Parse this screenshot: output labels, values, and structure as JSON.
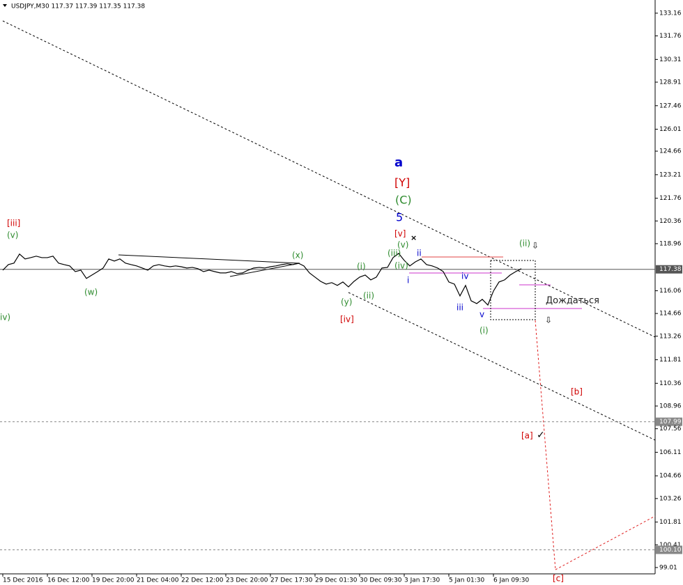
{
  "chart_data": {
    "type": "line",
    "title": "USDJPY,M30 117.37 117.39 117.35 117.38",
    "categories": [
      "15 Dec 2016",
      null,
      null,
      null,
      null,
      null,
      null,
      null,
      "16 Dec 12:00",
      null,
      null,
      null,
      null,
      null,
      null,
      null,
      "19 Dec 20:00",
      null,
      null,
      null,
      null,
      null,
      null,
      null,
      "21 Dec 04:00",
      null,
      null,
      null,
      null,
      null,
      null,
      null,
      "22 Dec 12:00",
      null,
      null,
      null,
      null,
      null,
      null,
      null,
      "23 Dec 20:00",
      null,
      null,
      null,
      null,
      null,
      null,
      null,
      "27 Dec 17:30",
      null,
      null,
      null,
      null,
      null,
      null,
      null,
      "29 Dec 01:30",
      null,
      null,
      null,
      null,
      null,
      null,
      null,
      "30 Dec 09:30",
      null,
      null,
      null,
      null,
      null,
      null,
      null,
      "3 Jan 17:30",
      null,
      null,
      null,
      null,
      null,
      null,
      null,
      "5 Jan 01:30",
      null,
      null,
      null,
      null,
      null,
      null,
      null,
      "6 Jan 09:30",
      null,
      null,
      null,
      null,
      null
    ],
    "series": [
      {
        "color": "#000000",
        "values": [
          117.33,
          117.67,
          117.76,
          118.32,
          118.02,
          118.1,
          118.19,
          118.1,
          118.1,
          118.19,
          117.76,
          117.67,
          117.59,
          117.24,
          117.33,
          116.82,
          117.03,
          117.24,
          117.46,
          118.02,
          117.89,
          118.02,
          117.76,
          117.67,
          117.59,
          117.46,
          117.33,
          117.59,
          117.67,
          117.59,
          117.54,
          117.59,
          117.54,
          117.46,
          117.5,
          117.42,
          117.24,
          117.33,
          117.24,
          117.16,
          117.16,
          117.24,
          117.12,
          117.16,
          117.33,
          117.46,
          117.5,
          117.46,
          117.54,
          117.59,
          117.67,
          117.72,
          117.67,
          117.76,
          117.59,
          117.16,
          116.9,
          116.64,
          116.47,
          116.56,
          116.39,
          116.6,
          116.3,
          116.64,
          116.9,
          117.03,
          116.73,
          116.9,
          117.46,
          117.5,
          118.1,
          118.36,
          117.93,
          117.59,
          117.84,
          118.02,
          117.67,
          117.59,
          117.46,
          117.24,
          116.6,
          116.47,
          115.74,
          116.39,
          115.44,
          115.27,
          115.53,
          115.18,
          116.04,
          116.6,
          116.73,
          117.03,
          117.24,
          117.42
        ]
      }
    ],
    "ylim": [
      98.62,
      133.8
    ],
    "yticks": [
      133.16,
      131.76,
      130.31,
      128.91,
      127.46,
      126.01,
      124.66,
      123.21,
      121.76,
      120.36,
      118.96,
      116.06,
      114.66,
      113.26,
      111.81,
      110.36,
      108.96,
      107.56,
      106.11,
      104.66,
      103.26,
      101.81,
      100.41,
      99.01
    ],
    "levels": [
      {
        "value": 117.38,
        "label": "117.38",
        "style": "solid",
        "color": "#555555"
      },
      {
        "value": 107.99,
        "label": "107.99",
        "style": "dashed",
        "color": "#888888"
      },
      {
        "value": 100.1,
        "label": "100.10",
        "style": "dashed",
        "color": "#888888"
      }
    ],
    "annotations": [
      {
        "text": "[iii]",
        "color": "#d00000"
      },
      {
        "text": "(v)",
        "color": "#2e8b2e"
      },
      {
        "text": "iv)",
        "color": "#2e8b2e"
      },
      {
        "text": "(w)",
        "color": "#2e8b2e"
      },
      {
        "text": "(x)",
        "color": "#2e8b2e"
      },
      {
        "text": "(y)",
        "color": "#2e8b2e"
      },
      {
        "text": "[iv]",
        "color": "#d00000"
      },
      {
        "text": "(i)",
        "color": "#2e8b2e"
      },
      {
        "text": "(ii)",
        "color": "#2e8b2e"
      },
      {
        "text": "a",
        "color": "#0000cc"
      },
      {
        "text": "[Y]",
        "color": "#d00000"
      },
      {
        "text": "(C)",
        "color": "#2e8b2e"
      },
      {
        "text": "5",
        "color": "#0000cc"
      },
      {
        "text": "[v]",
        "color": "#d00000"
      },
      {
        "text": "(v)",
        "color": "#2e8b2e"
      },
      {
        "text": "(iii)",
        "color": "#2e8b2e"
      },
      {
        "text": "(iv)",
        "color": "#2e8b2e"
      },
      {
        "text": "ii",
        "color": "#0000cc"
      },
      {
        "text": "i",
        "color": "#0000cc"
      },
      {
        "text": "iv",
        "color": "#0000cc"
      },
      {
        "text": "iii",
        "color": "#0000cc"
      },
      {
        "text": "v",
        "color": "#0000cc"
      },
      {
        "text": "(i)",
        "color": "#2e8b2e"
      },
      {
        "text": "(ii)",
        "color": "#2e8b2e"
      },
      {
        "text": "Дождаться",
        "color": "#222222"
      },
      {
        "text": "[b]",
        "color": "#d00000"
      },
      {
        "text": "[a]",
        "color": "#d00000"
      },
      {
        "text": "[c]",
        "color": "#d00000"
      }
    ]
  }
}
